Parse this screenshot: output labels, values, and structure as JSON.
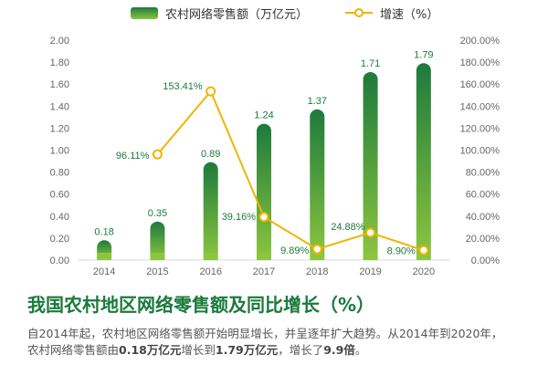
{
  "legend": {
    "bar_label": "农村网络零售额（万亿元）",
    "line_label": "增速（%）"
  },
  "colors": {
    "bar_top": "#1e7a3c",
    "bar_bottom": "#8cc63f",
    "line": "#f0b400",
    "label_green": "#1e7a3c"
  },
  "chart_data": {
    "type": "bar",
    "categories": [
      "2014",
      "2015",
      "2016",
      "2017",
      "2018",
      "2019",
      "2020"
    ],
    "series": [
      {
        "name": "农村网络零售额（万亿元）",
        "type": "bar",
        "axis": "left",
        "values": [
          0.18,
          0.35,
          0.89,
          1.24,
          1.37,
          1.71,
          1.79
        ],
        "labels": [
          "0.18",
          "0.35",
          "0.89",
          "1.24",
          "1.37",
          "1.71",
          "1.79"
        ]
      },
      {
        "name": "增速（%）",
        "type": "line",
        "axis": "right",
        "values": [
          null,
          96.11,
          153.41,
          39.16,
          9.89,
          24.88,
          8.9
        ],
        "labels": [
          "",
          "96.11%",
          "153.41%",
          "39.16%",
          "9.89%",
          "24.88%",
          "8.90%"
        ]
      }
    ],
    "ylim_left": [
      0,
      2
    ],
    "yticks_left": [
      "0.00",
      "0.20",
      "0.40",
      "0.60",
      "0.80",
      "1.00",
      "1.20",
      "1.40",
      "1.60",
      "1.80",
      "2.00"
    ],
    "ylim_right": [
      0,
      200
    ],
    "yticks_right": [
      "0.00%",
      "20.00%",
      "40.00%",
      "60.00%",
      "80.00%",
      "100.00%",
      "120.00%",
      "140.00%",
      "160.00%",
      "180.00%",
      "200.00%"
    ],
    "grid": false,
    "legend_position": "top"
  },
  "title": "我国农村地区网络零售额及同比增长（%）",
  "description": {
    "line1": "自2014年起，农村地区网络零售额开始明显增长，并呈逐年扩大趋势。从2014年到2020年，",
    "line2_part1": "农村网络零售额由",
    "line2_hl1": "0.18万亿元",
    "line2_part2": "增长到",
    "line2_hl2": "1.79万亿元",
    "line2_part3": "，增长了",
    "line2_hl3": "9.9倍",
    "line2_part4": "。"
  }
}
